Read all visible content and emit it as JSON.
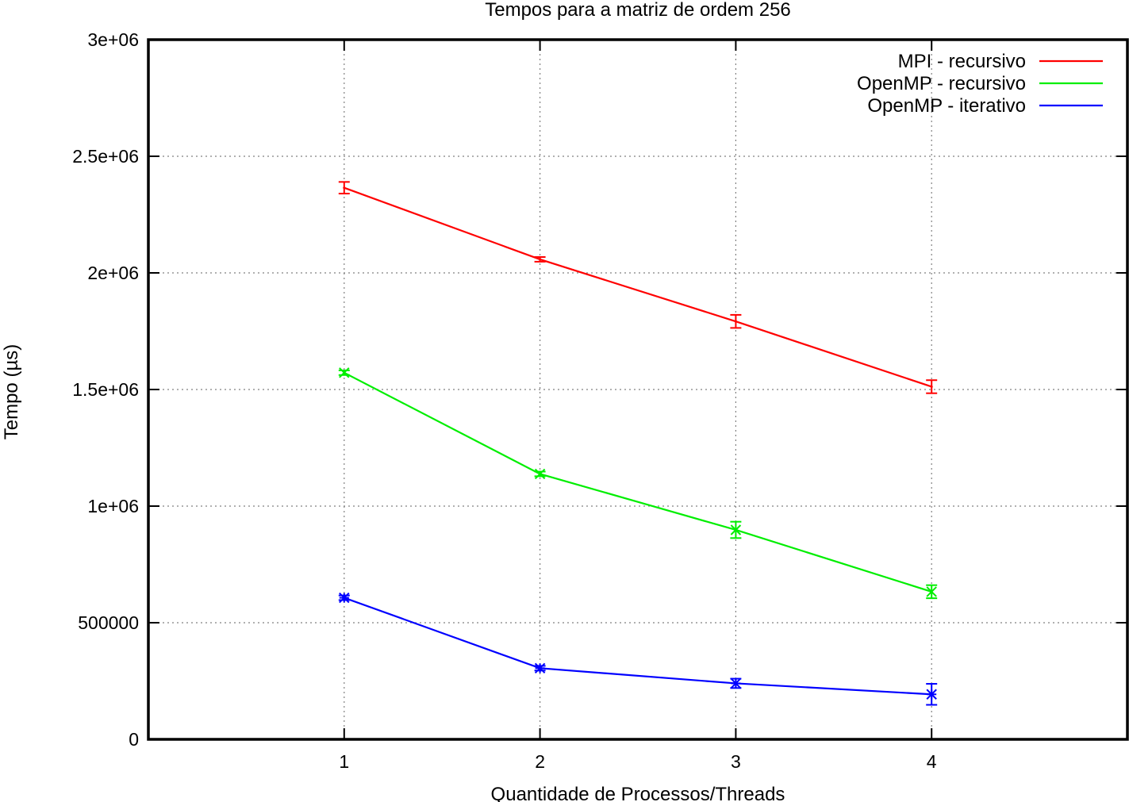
{
  "chart_data": {
    "type": "line",
    "title": "Tempos para a matriz de ordem 256",
    "xlabel": "Quantidade de Processos/Threads",
    "ylabel": "Tempo (µs)",
    "x": [
      1,
      2,
      3,
      4
    ],
    "xlim": [
      0,
      5
    ],
    "ylim": [
      0,
      3000000
    ],
    "xticks": [
      1,
      2,
      3,
      4
    ],
    "xtick_labels": [
      "1",
      "2",
      "3",
      "4"
    ],
    "yticks": [
      0,
      500000,
      1000000,
      1500000,
      2000000,
      2500000,
      3000000
    ],
    "ytick_labels": [
      "0",
      "500000",
      "1e+06",
      "1.5e+06",
      "2e+06",
      "2.5e+06",
      "3e+06"
    ],
    "grid": true,
    "legend_position": "top-right",
    "error_bars": true,
    "series": [
      {
        "name": "MPI - recursivo",
        "color": "#ff0000",
        "marker": "error-bar-only",
        "values": [
          2365000,
          2058000,
          1792000,
          1512000
        ],
        "errors": [
          25000,
          10000,
          28000,
          28000
        ]
      },
      {
        "name": "OpenMP - recursivo",
        "color": "#00ee00",
        "marker": "x",
        "values": [
          1572000,
          1138000,
          898000,
          633000
        ],
        "errors": [
          10000,
          10000,
          35000,
          28000
        ]
      },
      {
        "name": "OpenMP - iterativo",
        "color": "#0000ff",
        "marker": "star",
        "values": [
          607000,
          305000,
          240000,
          193000
        ],
        "errors": [
          10000,
          10000,
          20000,
          45000
        ]
      }
    ]
  }
}
